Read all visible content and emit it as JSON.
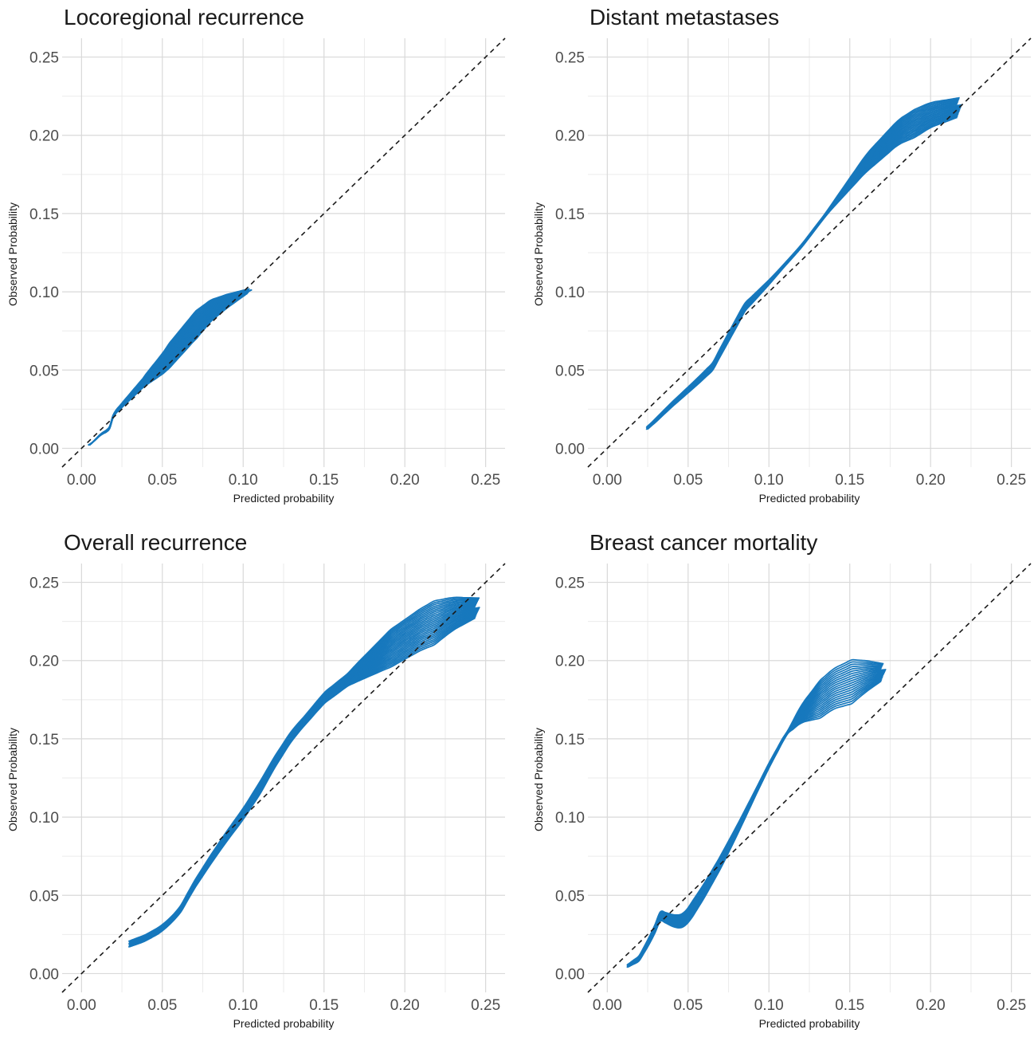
{
  "chart_data": [
    {
      "type": "line",
      "title": "Locoregional recurrence",
      "xlabel": "Predicted probability",
      "ylabel": "Observed Probability",
      "xlim": [
        -0.012,
        0.262
      ],
      "ylim": [
        -0.012,
        0.262
      ],
      "ticks": [
        0.0,
        0.05,
        0.1,
        0.15,
        0.2,
        0.25
      ],
      "tick_labels": [
        "0.00",
        "0.05",
        "0.10",
        "0.15",
        "0.20",
        "0.25"
      ],
      "grid": true,
      "reference_line": "diagonal",
      "line_color": "#1778bd",
      "n_curves": 20,
      "spread": [
        0,
        0.001,
        0.003,
        0.008,
        0.009,
        0.005,
        0.001
      ],
      "series": [
        {
          "x": [
            0.005,
            0.012,
            0.017,
            0.02,
            0.03,
            0.04,
            0.05,
            0.06,
            0.07,
            0.08,
            0.09,
            0.1,
            0.104
          ],
          "y": [
            0.002,
            0.009,
            0.012,
            0.022,
            0.033,
            0.044,
            0.054,
            0.066,
            0.078,
            0.088,
            0.094,
            0.099,
            0.101
          ]
        }
      ]
    },
    {
      "type": "line",
      "title": "Distant metastases",
      "xlabel": "Predicted probability",
      "ylabel": "Observed Probability",
      "xlim": [
        -0.012,
        0.262
      ],
      "ylim": [
        -0.012,
        0.262
      ],
      "ticks": [
        0.0,
        0.05,
        0.1,
        0.15,
        0.2,
        0.25
      ],
      "tick_labels": [
        "0.00",
        "0.05",
        "0.10",
        "0.15",
        "0.20",
        "0.25"
      ],
      "grid": true,
      "reference_line": "diagonal",
      "line_color": "#1778bd",
      "n_curves": 20,
      "spread": [
        0.001,
        0.002,
        0.003,
        0.001,
        0.001,
        0.006,
        0.009,
        0.006
      ],
      "series": [
        {
          "x": [
            0.025,
            0.04,
            0.055,
            0.065,
            0.075,
            0.085,
            0.1,
            0.12,
            0.14,
            0.16,
            0.18,
            0.2,
            0.218
          ],
          "y": [
            0.013,
            0.028,
            0.042,
            0.052,
            0.071,
            0.09,
            0.106,
            0.129,
            0.156,
            0.182,
            0.202,
            0.213,
            0.218
          ]
        }
      ]
    },
    {
      "type": "line",
      "title": "Overall recurrence",
      "xlabel": "Predicted probability",
      "ylabel": "Observed Probability",
      "xlim": [
        -0.012,
        0.262
      ],
      "ylim": [
        -0.012,
        0.262
      ],
      "ticks": [
        0.0,
        0.05,
        0.1,
        0.15,
        0.2,
        0.25
      ],
      "tick_labels": [
        "0.00",
        "0.05",
        "0.10",
        "0.15",
        "0.20",
        "0.25"
      ],
      "grid": true,
      "reference_line": "diagonal",
      "line_color": "#1778bd",
      "n_curves": 25,
      "spread": [
        0.002,
        0.002,
        0.003,
        0.004,
        0.003,
        0.004,
        0.012,
        0.014,
        0.006
      ],
      "series": [
        {
          "x": [
            0.03,
            0.04,
            0.05,
            0.06,
            0.07,
            0.08,
            0.09,
            0.1,
            0.11,
            0.12,
            0.13,
            0.15,
            0.17,
            0.19,
            0.21,
            0.23,
            0.245
          ],
          "y": [
            0.019,
            0.023,
            0.029,
            0.039,
            0.057,
            0.073,
            0.088,
            0.102,
            0.118,
            0.136,
            0.152,
            0.176,
            0.192,
            0.207,
            0.22,
            0.23,
            0.234
          ]
        }
      ]
    },
    {
      "type": "line",
      "title": "Breast cancer mortality",
      "xlabel": "Predicted probability",
      "ylabel": "Observed Probability",
      "xlim": [
        -0.012,
        0.262
      ],
      "ylim": [
        -0.012,
        0.262
      ],
      "ticks": [
        0.0,
        0.05,
        0.1,
        0.15,
        0.2,
        0.25
      ],
      "tick_labels": [
        "0.00",
        "0.05",
        "0.10",
        "0.15",
        "0.20",
        "0.25"
      ],
      "grid": true,
      "reference_line": "diagonal",
      "line_color": "#1778bd",
      "n_curves": 20,
      "spread": [
        0.001,
        0.003,
        0.005,
        0.004,
        0.002,
        0.001,
        0.012,
        0.014,
        0.005
      ],
      "series": [
        {
          "x": [
            0.013,
            0.02,
            0.028,
            0.033,
            0.04,
            0.045,
            0.05,
            0.06,
            0.07,
            0.08,
            0.09,
            0.1,
            0.11,
            0.12,
            0.14,
            0.16,
            0.171
          ],
          "y": [
            0.005,
            0.01,
            0.025,
            0.037,
            0.034,
            0.033,
            0.037,
            0.053,
            0.071,
            0.091,
            0.112,
            0.133,
            0.152,
            0.166,
            0.182,
            0.19,
            0.193
          ]
        }
      ]
    }
  ]
}
